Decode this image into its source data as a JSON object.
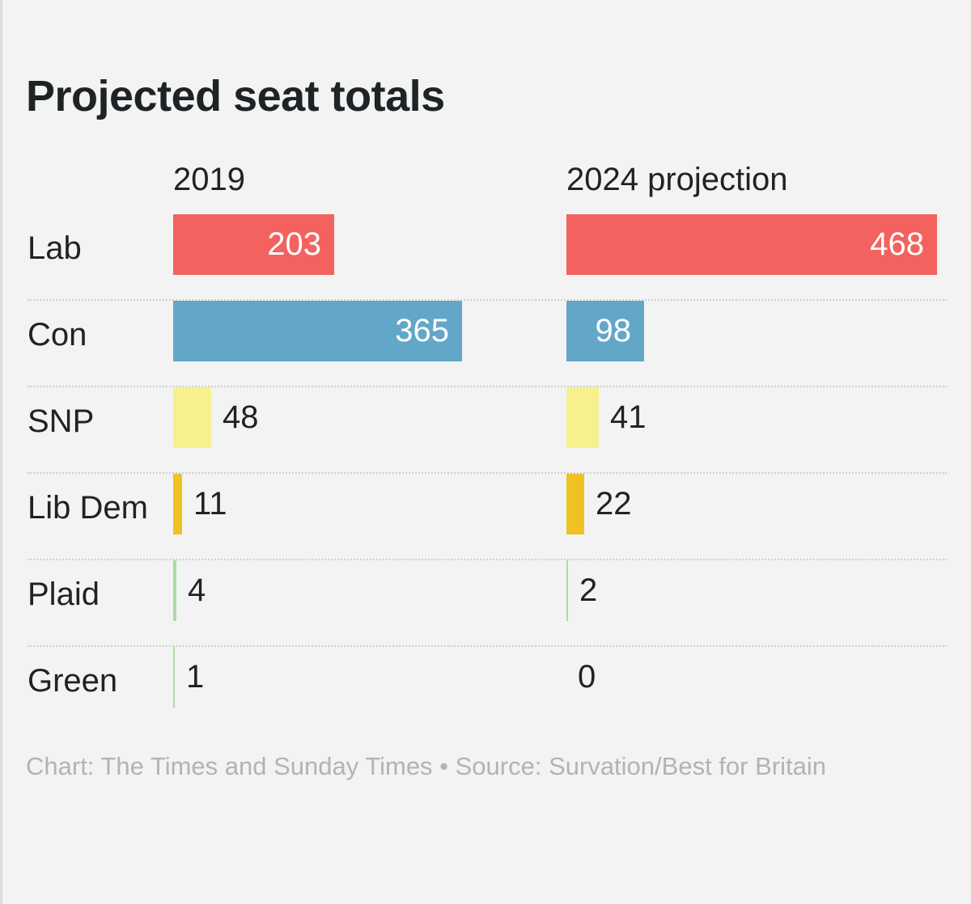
{
  "chart_data": {
    "type": "bar",
    "title": "Projected seat totals",
    "series": [
      {
        "name": "2019",
        "values": [
          203,
          365,
          48,
          11,
          4,
          1
        ]
      },
      {
        "name": "2024 projection",
        "values": [
          468,
          98,
          41,
          22,
          2,
          0
        ]
      }
    ],
    "categories": [
      "Lab",
      "Con",
      "SNP",
      "Lib Dem",
      "Plaid",
      "Green"
    ],
    "colors": [
      "#f4625f",
      "#63a7c8",
      "#f6f18c",
      "#efc224",
      "#a8dda0",
      "#a8dda0"
    ],
    "xlim": [
      0,
      468
    ],
    "footer": "Chart: The Times and Sunday Times • Source: Survation/Best for Britain"
  }
}
